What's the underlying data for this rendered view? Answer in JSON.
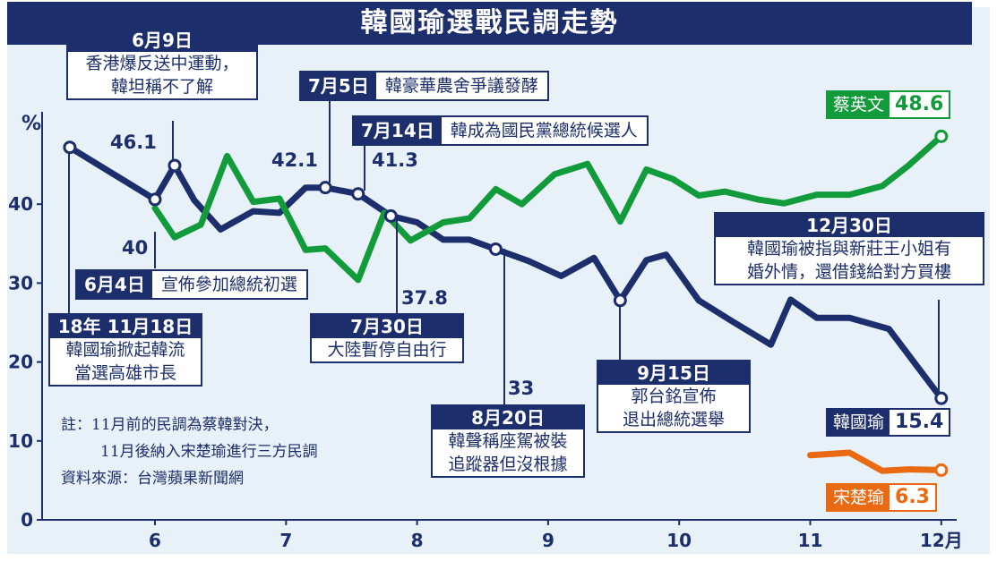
{
  "title": "韓國瑜選戰民調走勢",
  "unit": "%",
  "colors": {
    "han": "#1c2e6b",
    "tsai": "#129b3a",
    "soong": "#ea6a13"
  },
  "chart_data": {
    "type": "line",
    "title": "韓國瑜選戰民調走勢",
    "ylabel": "%",
    "ylim": [
      0,
      50
    ],
    "xlim": [
      5.35,
      12.05
    ],
    "xticks": [
      6,
      7,
      8,
      9,
      10,
      11,
      12
    ],
    "xtick_labels": [
      "6",
      "7",
      "8",
      "9",
      "10",
      "11",
      "12月"
    ],
    "yticks": [
      0,
      10,
      20,
      30,
      40
    ],
    "grid": false,
    "series": [
      {
        "name": "韓國瑜",
        "color": "#1c2e6b",
        "x": [
          5.35,
          6.0,
          6.15,
          6.3,
          6.5,
          6.75,
          6.95,
          7.15,
          7.3,
          7.55,
          7.8,
          8.0,
          8.2,
          8.4,
          8.6,
          8.85,
          9.1,
          9.35,
          9.55,
          9.75,
          9.9,
          10.15,
          10.4,
          10.7,
          10.85,
          11.05,
          11.3,
          11.6,
          12.0
        ],
        "y": [
          47.2,
          40.6,
          44.9,
          40.5,
          36.8,
          39.1,
          38.9,
          42.1,
          42.1,
          41.3,
          38.5,
          37.7,
          35.5,
          35.5,
          34.3,
          32.8,
          30.9,
          33.2,
          27.8,
          32.9,
          33.6,
          27.8,
          25.2,
          22.2,
          27.9,
          25.6,
          25.6,
          24.2,
          15.4
        ]
      },
      {
        "name": "蔡英文",
        "color": "#129b3a",
        "x": [
          6.0,
          6.15,
          6.35,
          6.55,
          6.75,
          6.95,
          7.15,
          7.3,
          7.55,
          7.75,
          7.95,
          8.2,
          8.4,
          8.6,
          8.8,
          9.05,
          9.3,
          9.55,
          9.75,
          9.95,
          10.15,
          10.35,
          10.6,
          10.8,
          11.05,
          11.3,
          11.55,
          11.75,
          12.0
        ],
        "y": [
          39.5,
          35.8,
          37.4,
          46.1,
          40.3,
          40.7,
          34.2,
          34.4,
          30.4,
          38.9,
          35.4,
          37.7,
          38.2,
          41.9,
          40.0,
          43.8,
          45.1,
          37.8,
          44.4,
          43.2,
          41.1,
          41.6,
          40.6,
          40.1,
          41.2,
          41.2,
          42.3,
          44.9,
          48.6
        ]
      },
      {
        "name": "宋楚瑜",
        "color": "#ea6a13",
        "x": [
          11.0,
          11.3,
          11.55,
          11.75,
          12.0
        ],
        "y": [
          8.2,
          8.5,
          6.2,
          6.4,
          6.3
        ]
      }
    ]
  },
  "data_labels": {
    "v461": "46.1",
    "v40": "40",
    "v421": "42.1",
    "v413": "41.3",
    "v378": "37.8",
    "v33": "33"
  },
  "callouts": {
    "jun9": {
      "date": "6月9日",
      "text": [
        "香港爆反送中運動，",
        "韓坦稱不了解"
      ]
    },
    "jul5": {
      "date": "7月5日",
      "text": "韓豪華農舍爭議發酵"
    },
    "jul14": {
      "date": "7月14日",
      "text": "韓成為國民黨總統候選人"
    },
    "jun4": {
      "date": "6月4日",
      "text": "宣佈參加總統初選"
    },
    "nov18": {
      "date_a": "18年",
      "date_b": "11月18日",
      "text": [
        "韓國瑜掀起韓流",
        "當選高雄市長"
      ]
    },
    "jul30": {
      "date": "7月30日",
      "text": "大陸暫停自由行"
    },
    "aug20": {
      "date": "8月20日",
      "text": [
        "韓聲稱座駕被裝",
        "追蹤器但沒根據"
      ]
    },
    "sep15": {
      "date": "9月15日",
      "text": [
        "郭台銘宣佈",
        "退出總統選舉"
      ]
    },
    "dec30": {
      "date": "12月30日",
      "text": [
        "韓國瑜被指與新莊王小姐有",
        "婚外情，還借錢給對方買樓"
      ]
    }
  },
  "legend": {
    "tsai": {
      "name": "蔡英文",
      "value": "48.6"
    },
    "han": {
      "name": "韓國瑜",
      "value": "15.4"
    },
    "soong": {
      "name": "宋楚瑜",
      "value": "6.3"
    }
  },
  "note": {
    "line1": "註：11月前的民調為蔡韓對決，",
    "line2": "11月後納入宋楚瑜進行三方民調",
    "line3": "資料來源：台灣蘋果新聞網"
  }
}
